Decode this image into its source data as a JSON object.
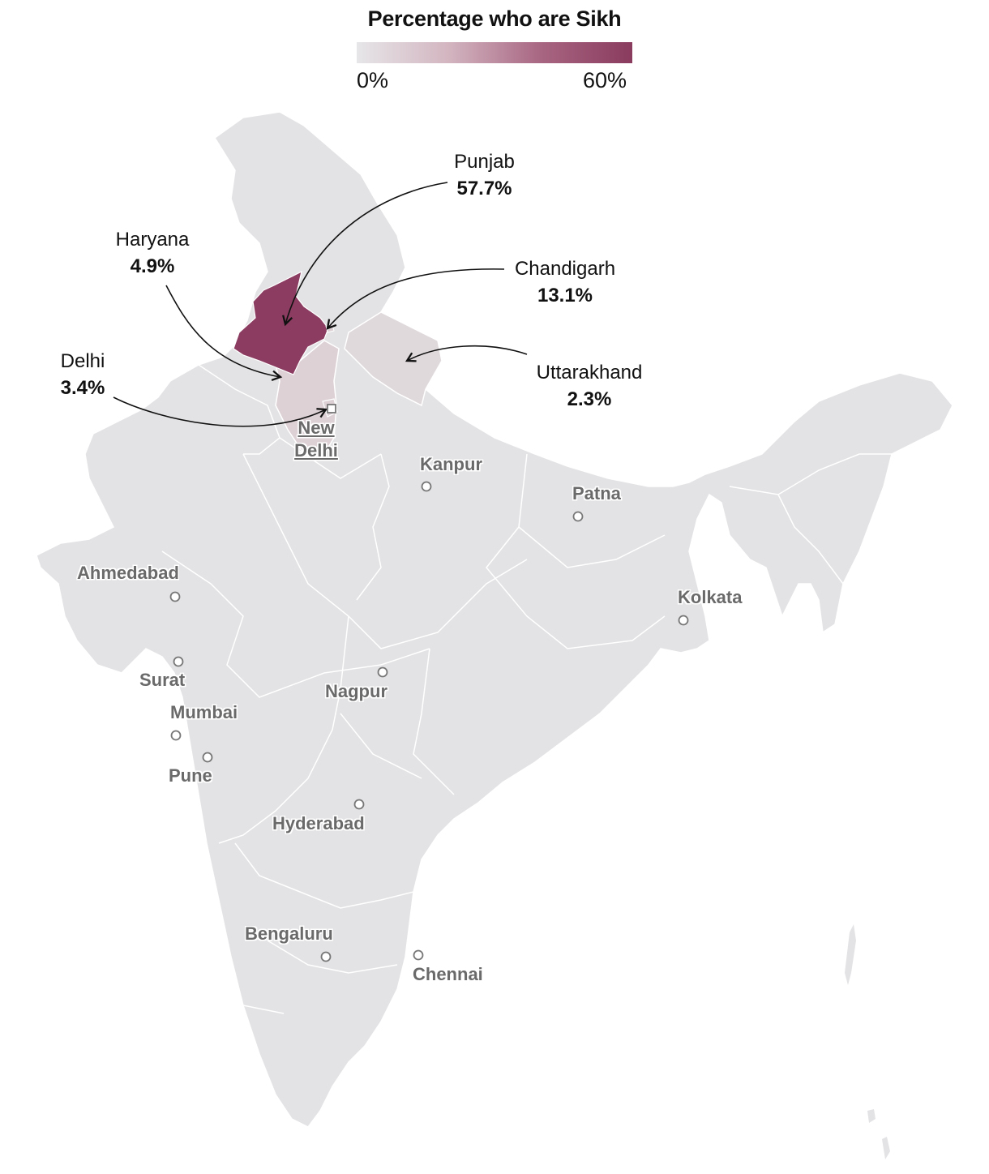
{
  "legend": {
    "title": "Percentage who are Sikh",
    "min_label": "0%",
    "max_label": "60%",
    "min_value": 0,
    "max_value": 60,
    "color_low": "#e6e6e8",
    "color_high": "#8a3b5e"
  },
  "colors": {
    "land": "#e3e3e5",
    "state_border": "#ffffff",
    "punjab": "#8b3c60",
    "chandigarh_haryana_delhi": "#ddd1d6",
    "uttarakhand": "#e0d9dc",
    "marker_fill": "#ffffff",
    "marker_stroke": "#777777"
  },
  "regions": [
    {
      "name": "Punjab",
      "value_label": "57.7%",
      "value": 57.7
    },
    {
      "name": "Haryana",
      "value_label": "4.9%",
      "value": 4.9
    },
    {
      "name": "Chandigarh",
      "value_label": "13.1%",
      "value": 13.1
    },
    {
      "name": "Delhi",
      "value_label": "3.4%",
      "value": 3.4
    },
    {
      "name": "Uttarakhand",
      "value_label": "2.3%",
      "value": 2.3
    }
  ],
  "cities": {
    "capital_line1": "New",
    "capital_line2": "Delhi",
    "kanpur": "Kanpur",
    "patna": "Patna",
    "ahmedabad": "Ahmedabad",
    "kolkata": "Kolkata",
    "surat": "Surat",
    "nagpur": "Nagpur",
    "mumbai": "Mumbai",
    "pune": "Pune",
    "hyderabad": "Hyderabad",
    "bengaluru": "Bengaluru",
    "chennai": "Chennai"
  }
}
